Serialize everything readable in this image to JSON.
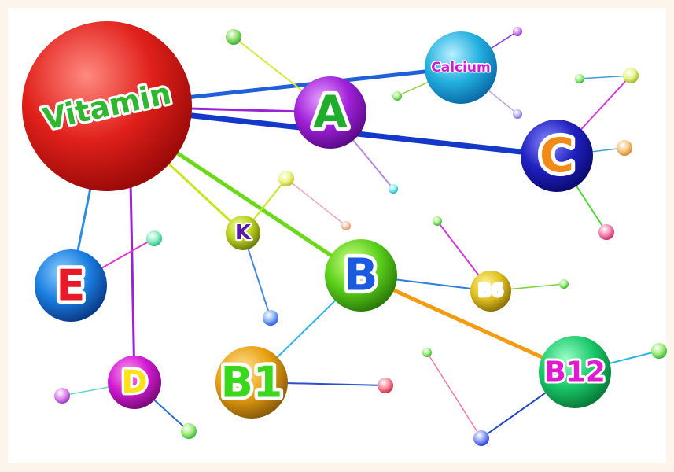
{
  "nodes": [
    {
      "label": "Vitamin"
    },
    {
      "label": "Calcium"
    },
    {
      "label": "A"
    },
    {
      "label": "C"
    },
    {
      "label": "K"
    },
    {
      "label": "E"
    },
    {
      "label": "B"
    },
    {
      "label": "B6"
    },
    {
      "label": "D"
    },
    {
      "label": "B1"
    },
    {
      "label": "B12"
    }
  ]
}
